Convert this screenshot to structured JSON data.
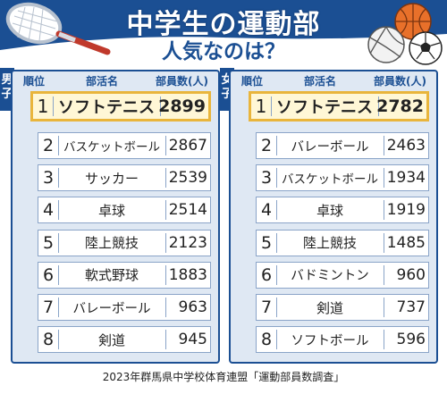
{
  "header": {
    "title": "中学生の運動部",
    "subtitle": "人気なのは？"
  },
  "columns": {
    "rank": "順位",
    "club": "部活名",
    "members": "部員数(人)"
  },
  "source": "2023年群馬県中学校体育連盟「運動部員数調査」",
  "colors": {
    "brand": "#1b4f93",
    "panel": "#dfe8f3",
    "highlight_border": "#e9b53c",
    "highlight_fill": "#fff7d6"
  },
  "icons": [
    "tennis-racket-icon",
    "basketball-icon",
    "volleyball-icon",
    "soccer-ball-icon"
  ],
  "chart_data": [
    {
      "type": "table",
      "group": "男子",
      "rows": [
        {
          "rank": "1",
          "club": "ソフトテニス",
          "members": "2899"
        },
        {
          "rank": "2",
          "club": "バスケットボール",
          "members": "2867"
        },
        {
          "rank": "3",
          "club": "サッカー",
          "members": "2539"
        },
        {
          "rank": "4",
          "club": "卓球",
          "members": "2514"
        },
        {
          "rank": "5",
          "club": "陸上競技",
          "members": "2123"
        },
        {
          "rank": "6",
          "club": "軟式野球",
          "members": "1883"
        },
        {
          "rank": "7",
          "club": "バレーボール",
          "members": "963"
        },
        {
          "rank": "8",
          "club": "剣道",
          "members": "945"
        }
      ]
    },
    {
      "type": "table",
      "group": "女子",
      "rows": [
        {
          "rank": "1",
          "club": "ソフトテニス",
          "members": "2782"
        },
        {
          "rank": "2",
          "club": "バレーボール",
          "members": "2463"
        },
        {
          "rank": "3",
          "club": "バスケットボール",
          "members": "1934"
        },
        {
          "rank": "4",
          "club": "卓球",
          "members": "1919"
        },
        {
          "rank": "5",
          "club": "陸上競技",
          "members": "1485"
        },
        {
          "rank": "6",
          "club": "バドミントン",
          "members": "960"
        },
        {
          "rank": "7",
          "club": "剣道",
          "members": "737"
        },
        {
          "rank": "8",
          "club": "ソフトボール",
          "members": "596"
        }
      ]
    }
  ]
}
